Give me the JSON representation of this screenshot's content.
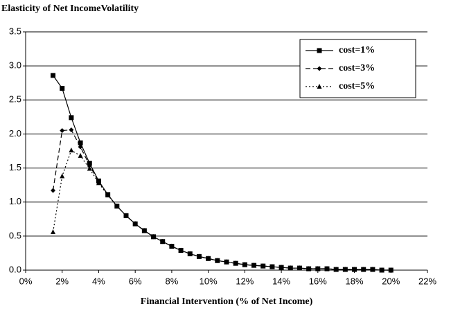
{
  "chart_data": {
    "type": "line",
    "title": "Elasticity of Net IncomeVolatility",
    "x_label": "Financial  Intervention (% of Net Income)",
    "x": [
      1.5,
      2,
      2.5,
      3,
      3.5,
      4,
      4.5,
      5,
      5.5,
      6,
      6.5,
      7,
      7.5,
      8,
      8.5,
      9,
      9.5,
      10,
      10.5,
      11,
      11.5,
      12,
      12.5,
      13,
      13.5,
      14,
      14.5,
      15,
      15.5,
      16,
      16.5,
      17,
      17.5,
      18,
      18.5,
      19,
      19.5,
      20
    ],
    "series": [
      {
        "name": "cost=1%",
        "color": "#000000",
        "dash": "solid",
        "marker": "square",
        "values": [
          2.86,
          2.67,
          2.24,
          1.87,
          1.57,
          1.31,
          1.11,
          0.94,
          0.8,
          0.68,
          0.58,
          0.49,
          0.42,
          0.35,
          0.29,
          0.24,
          0.2,
          0.17,
          0.14,
          0.12,
          0.1,
          0.08,
          0.07,
          0.06,
          0.05,
          0.04,
          0.03,
          0.03,
          0.02,
          0.02,
          0.02,
          0.01,
          0.01,
          0.01,
          0.01,
          0.01,
          0.0,
          0.0
        ]
      },
      {
        "name": "cost=3%",
        "color": "#000000",
        "dash": "dashed",
        "marker": "diamond",
        "values": [
          1.17,
          2.05,
          2.06,
          1.81,
          1.54,
          1.3,
          1.11,
          0.94,
          0.8,
          0.68,
          0.58,
          0.49,
          0.42,
          0.35,
          0.29,
          0.24,
          0.2,
          0.17,
          0.14,
          0.12,
          0.1,
          0.08,
          0.07,
          0.06,
          0.05,
          0.04,
          0.03,
          0.03,
          0.02,
          0.02,
          0.02,
          0.01,
          0.01,
          0.01,
          0.01,
          0.01,
          0.0,
          0.0
        ]
      },
      {
        "name": "cost=5%",
        "color": "#000000",
        "dash": "dotted",
        "marker": "triangle",
        "values": [
          0.56,
          1.38,
          1.76,
          1.68,
          1.49,
          1.28,
          1.1,
          0.94,
          0.8,
          0.68,
          0.58,
          0.49,
          0.42,
          0.35,
          0.29,
          0.24,
          0.2,
          0.17,
          0.14,
          0.12,
          0.1,
          0.08,
          0.07,
          0.06,
          0.05,
          0.04,
          0.03,
          0.03,
          0.02,
          0.02,
          0.02,
          0.01,
          0.01,
          0.01,
          0.01,
          0.01,
          0.0,
          0.0
        ]
      }
    ],
    "xlim": [
      0,
      22
    ],
    "xticks": [
      {
        "value": 0,
        "label": "0%"
      },
      {
        "value": 2,
        "label": "2%"
      },
      {
        "value": 4,
        "label": "4%"
      },
      {
        "value": 6,
        "label": "6%"
      },
      {
        "value": 8,
        "label": "8%"
      },
      {
        "value": 10,
        "label": "10%"
      },
      {
        "value": 12,
        "label": "12%"
      },
      {
        "value": 14,
        "label": "14%"
      },
      {
        "value": 16,
        "label": "16%"
      },
      {
        "value": 18,
        "label": "18%"
      },
      {
        "value": 20,
        "label": "20%"
      },
      {
        "value": 22,
        "label": "22%"
      }
    ],
    "ylim": [
      0,
      3.5
    ],
    "yticks": [
      {
        "value": 0,
        "label": "0.0"
      },
      0.5,
      {
        "value": 1,
        "label": "1.0"
      },
      1.5,
      {
        "value": 2,
        "label": "2.0"
      },
      2.5,
      {
        "value": 3,
        "label": "3.0"
      },
      3.5
    ],
    "grid": true,
    "legend": "top-right"
  }
}
